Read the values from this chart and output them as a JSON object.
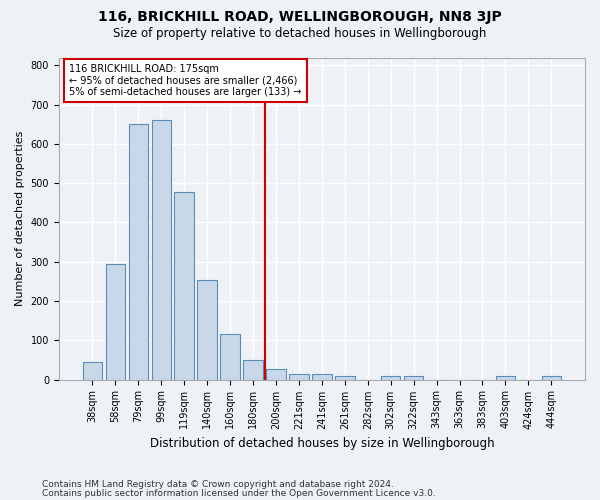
{
  "title1": "116, BRICKHILL ROAD, WELLINGBOROUGH, NN8 3JP",
  "title2": "Size of property relative to detached houses in Wellingborough",
  "xlabel": "Distribution of detached houses by size in Wellingborough",
  "ylabel": "Number of detached properties",
  "footnote1": "Contains HM Land Registry data © Crown copyright and database right 2024.",
  "footnote2": "Contains public sector information licensed under the Open Government Licence v3.0.",
  "bar_labels": [
    "38sqm",
    "58sqm",
    "79sqm",
    "99sqm",
    "119sqm",
    "140sqm",
    "160sqm",
    "180sqm",
    "200sqm",
    "221sqm",
    "241sqm",
    "261sqm",
    "282sqm",
    "302sqm",
    "322sqm",
    "343sqm",
    "363sqm",
    "383sqm",
    "403sqm",
    "424sqm",
    "444sqm"
  ],
  "bar_values": [
    46,
    295,
    650,
    660,
    478,
    253,
    115,
    50,
    28,
    15,
    15,
    8,
    0,
    8,
    8,
    0,
    0,
    0,
    8,
    0,
    8
  ],
  "bar_color": "#c8d8e8",
  "bar_edgecolor": "#5b8db8",
  "annotation_text1": "116 BRICKHILL ROAD: 175sqm",
  "annotation_text2": "← 95% of detached houses are smaller (2,466)",
  "annotation_text3": "5% of semi-detached houses are larger (133) →",
  "annotation_box_color": "#ffffff",
  "annotation_box_edgecolor": "#cc0000",
  "vline_color": "#cc0000",
  "vline_x_data": 7.5,
  "ylim": [
    0,
    820
  ],
  "background_color": "#eef2f7",
  "plot_background": "#eef2f7",
  "grid_color": "#ffffff",
  "title1_fontsize": 10,
  "title2_fontsize": 8.5,
  "ylabel_fontsize": 8,
  "xlabel_fontsize": 8.5,
  "tick_fontsize": 7,
  "footnote_fontsize": 6.5
}
